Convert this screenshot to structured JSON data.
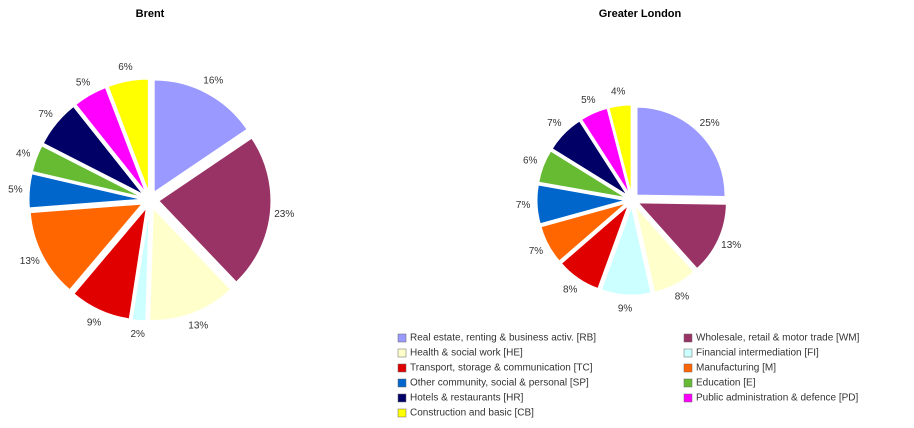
{
  "chart_data": [
    {
      "type": "pie",
      "title": "Brent",
      "values": [
        16,
        23,
        13,
        2,
        9,
        13,
        5,
        4,
        7,
        5,
        6
      ],
      "value_labels": [
        "16%",
        "23%",
        "13%",
        "2%",
        "9%",
        "13%",
        "5%",
        "4%",
        "7%",
        "5%",
        "6%"
      ],
      "colors": [
        "#9999ff",
        "#993366",
        "#ffffcc",
        "#ccffff",
        "#e00000",
        "#ff6600",
        "#0066cc",
        "#66bb33",
        "#000066",
        "#ff00ff",
        "#ffff00"
      ]
    },
    {
      "type": "pie",
      "title": "Greater London",
      "categories": [
        "Real estate, renting & business activ. [RB]",
        "Wholesale, retail & motor trade [WM]",
        "Health & social work [HE]",
        "Financial intermediation [FI]",
        "Transport, storage & communication [TC]",
        "Manufacturing [M]",
        "Other community, social & personal [SP]",
        "Education [E]",
        "Hotels & restaurants [HR]",
        "Public administration & defence [PD]",
        "Construction and basic [CB]"
      ],
      "values": [
        25,
        13,
        8,
        9,
        8,
        7,
        7,
        6,
        7,
        5,
        4
      ],
      "value_labels": [
        "25%",
        "13%",
        "8%",
        "9%",
        "8%",
        "7%",
        "7%",
        "6%",
        "7%",
        "5%",
        "4%"
      ],
      "colors": [
        "#9999ff",
        "#993366",
        "#ffffcc",
        "#ccffff",
        "#e00000",
        "#ff6600",
        "#0066cc",
        "#66bb33",
        "#000066",
        "#ff00ff",
        "#ffff00"
      ],
      "legend": true
    }
  ]
}
